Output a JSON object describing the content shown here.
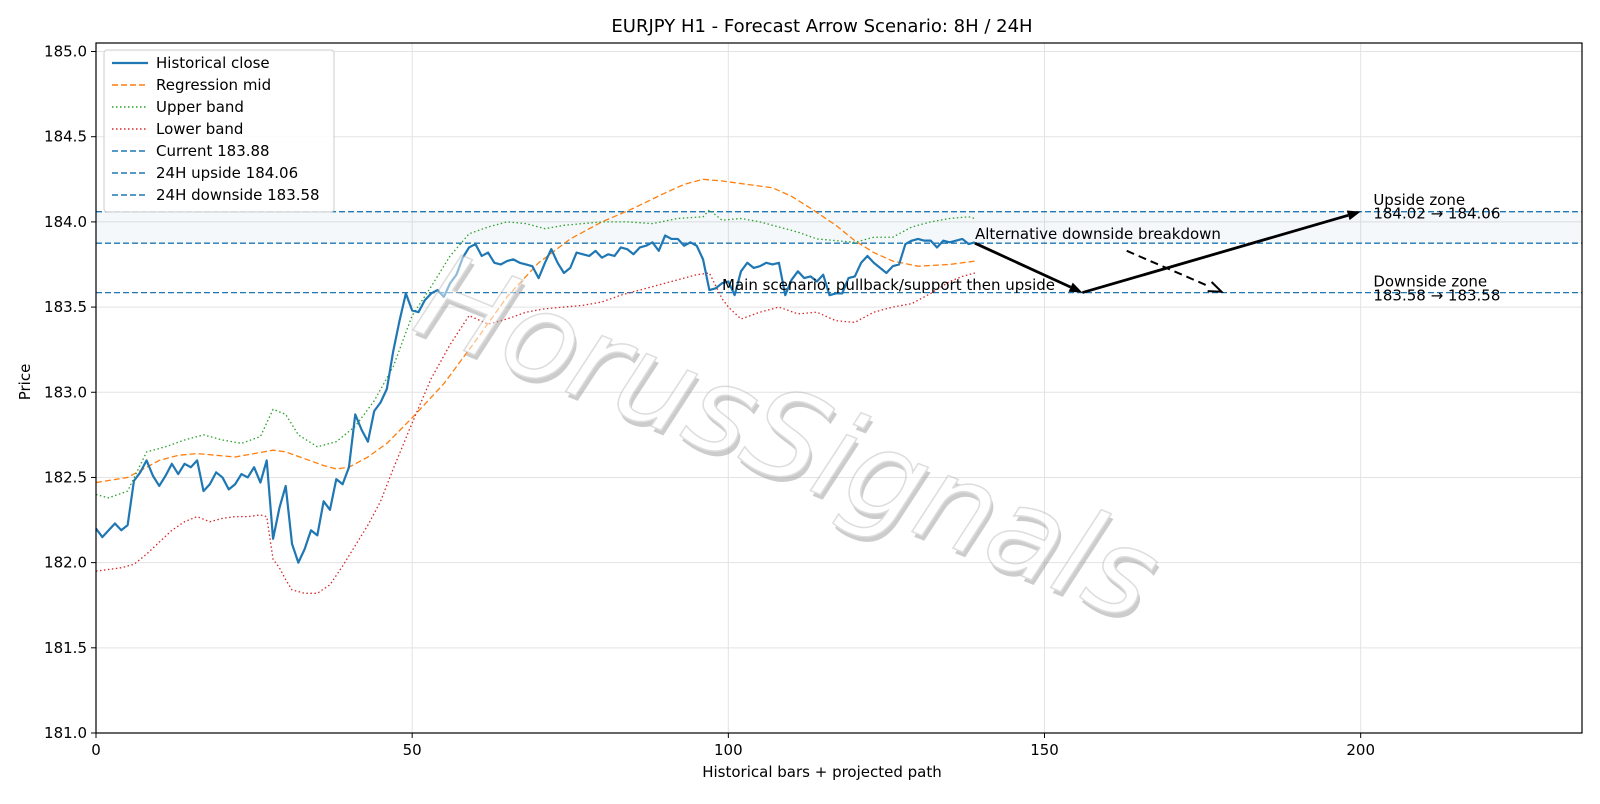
{
  "chart_data": {
    "type": "line",
    "title": "EURJPY H1 - Forecast Arrow Scenario: 8H / 24H",
    "xlabel": "Historical bars + projected path",
    "ylabel": "Price",
    "xlim": [
      0,
      235
    ],
    "ylim": [
      181.0,
      185.05
    ],
    "xticks": [
      0,
      50,
      100,
      150,
      200
    ],
    "yticks": [
      181.0,
      181.5,
      182.0,
      182.5,
      183.0,
      183.5,
      184.0,
      184.5,
      185.0
    ],
    "xtick_labels": [
      "0",
      "50",
      "100",
      "150",
      "200"
    ],
    "ytick_labels": [
      "181.0",
      "181.5",
      "182.0",
      "182.5",
      "183.0",
      "183.5",
      "184.0",
      "184.5",
      "185.0"
    ],
    "grid": true,
    "legend_position": "top-left",
    "watermark": "HorusSignals",
    "series": [
      {
        "name": "Historical close",
        "color": "#1f77b4",
        "style": "solid",
        "x": [
          0,
          1,
          2,
          3,
          4,
          5,
          6,
          7,
          8,
          9,
          10,
          11,
          12,
          13,
          14,
          15,
          16,
          17,
          18,
          19,
          20,
          21,
          22,
          23,
          24,
          25,
          26,
          27,
          28,
          29,
          30,
          31,
          32,
          33,
          34,
          35,
          36,
          37,
          38,
          39,
          40,
          41,
          42,
          43,
          44,
          45,
          46,
          47,
          48,
          49,
          50,
          51,
          52,
          53,
          54,
          55,
          56,
          57,
          58,
          59,
          60,
          61,
          62,
          63,
          64,
          65,
          66,
          67,
          68,
          69,
          70,
          71,
          72,
          73,
          74,
          75,
          76,
          77,
          78,
          79,
          80,
          81,
          82,
          83,
          84,
          85,
          86,
          87,
          88,
          89,
          90,
          91,
          92,
          93,
          94,
          95,
          96,
          97,
          98,
          99,
          100,
          101,
          102,
          103,
          104,
          105,
          106,
          107,
          108,
          109,
          110,
          111,
          112,
          113,
          114,
          115,
          116,
          117,
          118,
          119,
          120,
          121,
          122,
          123,
          124,
          125,
          126,
          127,
          128,
          129,
          130,
          131,
          132,
          133,
          134,
          135,
          136,
          137,
          138,
          139
        ],
        "values": [
          182.2,
          182.15,
          182.19,
          182.23,
          182.19,
          182.22,
          182.48,
          182.53,
          182.6,
          182.51,
          182.45,
          182.51,
          182.58,
          182.52,
          182.58,
          182.56,
          182.6,
          182.42,
          182.46,
          182.53,
          182.5,
          182.43,
          182.46,
          182.52,
          182.5,
          182.56,
          182.47,
          182.6,
          182.14,
          182.32,
          182.45,
          182.11,
          182.0,
          182.08,
          182.19,
          182.16,
          182.36,
          182.31,
          182.49,
          182.46,
          182.56,
          182.87,
          182.78,
          182.71,
          182.89,
          182.94,
          183.02,
          183.24,
          183.42,
          183.58,
          183.48,
          183.47,
          183.54,
          183.58,
          183.6,
          183.56,
          183.64,
          183.69,
          183.79,
          183.85,
          183.87,
          183.8,
          183.82,
          183.76,
          183.75,
          183.77,
          183.78,
          183.76,
          183.75,
          183.74,
          183.67,
          183.76,
          183.84,
          183.76,
          183.7,
          183.73,
          183.82,
          183.81,
          183.8,
          183.83,
          183.79,
          183.81,
          183.8,
          183.85,
          183.84,
          183.81,
          183.85,
          183.86,
          183.88,
          183.83,
          183.92,
          183.9,
          183.9,
          183.86,
          183.88,
          183.86,
          183.78,
          183.6,
          183.61,
          183.64,
          183.65,
          183.57,
          183.71,
          183.76,
          183.73,
          183.74,
          183.76,
          183.75,
          183.76,
          183.57,
          183.66,
          183.71,
          183.67,
          183.68,
          183.65,
          183.69,
          183.57,
          183.58,
          183.58,
          183.67,
          183.68,
          183.76,
          183.8,
          183.76,
          183.73,
          183.7,
          183.74,
          183.75,
          183.87,
          183.89,
          183.9,
          183.89,
          183.89,
          183.85,
          183.89,
          183.88,
          183.89,
          183.9,
          183.87,
          183.88
        ]
      },
      {
        "name": "Regression mid",
        "color": "#ff7f0e",
        "style": "dashed",
        "x": [
          0,
          5,
          8,
          10,
          13,
          16,
          19,
          22,
          25,
          28,
          30,
          33,
          36,
          38,
          40,
          43,
          46,
          50,
          55,
          60,
          65,
          70,
          75,
          80,
          85,
          90,
          93,
          96,
          99,
          103,
          107,
          110,
          113,
          117,
          120,
          123,
          126,
          130,
          135,
          139
        ],
        "values": [
          182.47,
          182.5,
          182.56,
          182.6,
          182.63,
          182.64,
          182.63,
          182.62,
          182.64,
          182.66,
          182.65,
          182.61,
          182.57,
          182.55,
          182.56,
          182.62,
          182.7,
          182.85,
          183.05,
          183.3,
          183.56,
          183.76,
          183.9,
          184.0,
          184.08,
          184.17,
          184.22,
          184.25,
          184.24,
          184.22,
          184.2,
          184.15,
          184.08,
          183.98,
          183.89,
          183.82,
          183.77,
          183.74,
          183.75,
          183.77
        ]
      },
      {
        "name": "Upper band",
        "color": "#2ca02c",
        "style": "dotted",
        "x": [
          0,
          2,
          5,
          8,
          11,
          14,
          17,
          20,
          23,
          26,
          28,
          30,
          32,
          35,
          38,
          41,
          44,
          47,
          50,
          53,
          56,
          59,
          62,
          65,
          68,
          71,
          74,
          77,
          80,
          84,
          88,
          92,
          96,
          97,
          99,
          102,
          105,
          108,
          111,
          114,
          117,
          120,
          123,
          126,
          129,
          132,
          135,
          138,
          139
        ],
        "values": [
          182.4,
          182.38,
          182.42,
          182.65,
          182.68,
          182.72,
          182.75,
          182.72,
          182.7,
          182.74,
          182.9,
          182.87,
          182.75,
          182.68,
          182.71,
          182.8,
          182.95,
          183.15,
          183.45,
          183.62,
          183.8,
          183.93,
          183.97,
          184.0,
          183.99,
          183.96,
          183.98,
          183.99,
          184.0,
          184.0,
          183.99,
          184.02,
          184.03,
          184.07,
          184.01,
          184.02,
          184.0,
          183.97,
          183.94,
          183.9,
          183.89,
          183.88,
          183.91,
          183.91,
          183.97,
          184.0,
          184.02,
          184.03,
          184.02
        ]
      },
      {
        "name": "Lower band",
        "color": "#d62728",
        "style": "dotted",
        "x": [
          0,
          2,
          4,
          6,
          8,
          10,
          12,
          14,
          16,
          18,
          20,
          22,
          24,
          26,
          27,
          28,
          29,
          30,
          31,
          33,
          35,
          37,
          39,
          41,
          43,
          45,
          47,
          50,
          53,
          56,
          59,
          62,
          65,
          68,
          71,
          74,
          77,
          80,
          83,
          86,
          89,
          92,
          95,
          97,
          99,
          100,
          102,
          105,
          108,
          111,
          114,
          117,
          120,
          123,
          126,
          129,
          132,
          135,
          137,
          139
        ],
        "values": [
          181.95,
          181.96,
          181.97,
          181.99,
          182.05,
          182.12,
          182.19,
          182.24,
          182.27,
          182.24,
          182.26,
          182.27,
          182.27,
          182.28,
          182.27,
          182.02,
          181.97,
          181.9,
          181.84,
          181.82,
          181.82,
          181.87,
          181.98,
          182.1,
          182.22,
          182.36,
          182.55,
          182.82,
          183.08,
          183.28,
          183.45,
          183.4,
          183.43,
          183.47,
          183.49,
          183.5,
          183.51,
          183.53,
          183.57,
          183.6,
          183.63,
          183.66,
          183.69,
          183.7,
          183.55,
          183.5,
          183.43,
          183.47,
          183.5,
          183.46,
          183.47,
          183.42,
          183.41,
          183.47,
          183.5,
          183.52,
          183.58,
          183.65,
          183.68,
          183.7
        ]
      }
    ],
    "hlines": [
      {
        "name": "Current 183.88",
        "value": 183.875,
        "color": "#1f77b4",
        "style": "dashed"
      },
      {
        "name": "24H upside 184.06",
        "value": 184.06,
        "color": "#1f77b4",
        "style": "dashed"
      },
      {
        "name": "24H downside 183.58",
        "value": 183.585,
        "color": "#1f77b4",
        "style": "dashed"
      }
    ],
    "arrows": [
      {
        "from": [
          139,
          183.875
        ],
        "to": [
          156,
          183.585
        ],
        "style": "solid"
      },
      {
        "from": [
          156,
          183.585
        ],
        "to": [
          200,
          184.06
        ],
        "style": "solid"
      },
      {
        "from": [
          163,
          183.83
        ],
        "to": [
          178,
          183.59
        ],
        "style": "dashed"
      }
    ],
    "annotations": [
      {
        "text": "Alternative downside breakdown",
        "x": 139,
        "y": 183.9
      },
      {
        "text": "Main scenario: pullback/support then upside",
        "x": 99,
        "y": 183.6
      },
      {
        "text": "Upside zone",
        "x": 202,
        "y": 184.1
      },
      {
        "text": "184.02 → 184.06",
        "x": 202,
        "y": 184.02
      },
      {
        "text": "Downside zone",
        "x": 202,
        "y": 183.62
      },
      {
        "text": "183.58 → 183.58",
        "x": 202,
        "y": 183.54
      }
    ],
    "upside_band": [
      183.875,
      184.06
    ],
    "legend": [
      {
        "label": "Historical close",
        "color": "#1f77b4",
        "style": "solid"
      },
      {
        "label": "Regression mid",
        "color": "#ff7f0e",
        "style": "dashed"
      },
      {
        "label": "Upper band",
        "color": "#2ca02c",
        "style": "dotted"
      },
      {
        "label": "Lower band",
        "color": "#d62728",
        "style": "dotted"
      },
      {
        "label": "Current 183.88",
        "color": "#1f77b4",
        "style": "dashed"
      },
      {
        "label": "24H upside 184.06",
        "color": "#1f77b4",
        "style": "dashed"
      },
      {
        "label": "24H downside 183.58",
        "color": "#1f77b4",
        "style": "dashed"
      }
    ]
  }
}
